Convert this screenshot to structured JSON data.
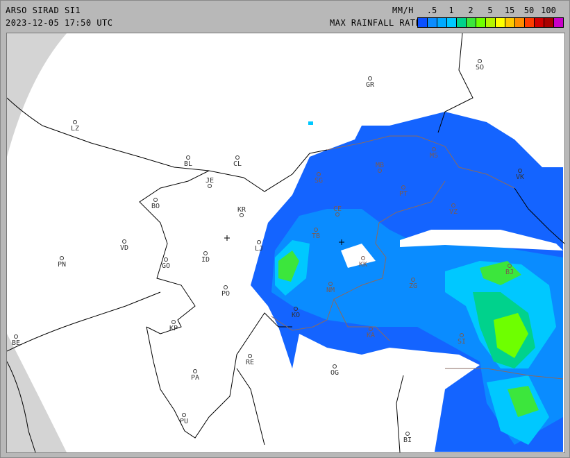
{
  "header": {
    "title": "ARSO SIRAD SI1",
    "timestamp": "2023-12-05 17:50 UTC",
    "unit": "MM/H",
    "legend_title": "MAX RAINFALL RATE"
  },
  "legend": {
    "ticks": [
      ".5",
      "1",
      "2",
      "5",
      "15",
      "50",
      "100"
    ],
    "colors": [
      "#0a50ff",
      "#0a8cff",
      "#00aaff",
      "#00c8ff",
      "#00d28c",
      "#3ce63c",
      "#6eff00",
      "#b4f500",
      "#ffff00",
      "#ffc800",
      "#ff8c00",
      "#ff3c00",
      "#d20000",
      "#aa0000",
      "#c800c8"
    ]
  },
  "cities": [
    {
      "code": "SO"
    },
    {
      "code": "GR"
    },
    {
      "code": "LZ"
    },
    {
      "code": "BL"
    },
    {
      "code": "CL"
    },
    {
      "code": "JE"
    },
    {
      "code": "BO"
    },
    {
      "code": "KR"
    },
    {
      "code": "VD"
    },
    {
      "code": "LJ"
    },
    {
      "code": "PN"
    },
    {
      "code": "GO"
    },
    {
      "code": "ID"
    },
    {
      "code": "PO"
    },
    {
      "code": "KP"
    },
    {
      "code": "BE"
    },
    {
      "code": "RE"
    },
    {
      "code": "OG"
    },
    {
      "code": "PA"
    },
    {
      "code": "PU"
    },
    {
      "code": "BI"
    },
    {
      "code": "SG"
    },
    {
      "code": "MB"
    },
    {
      "code": "CE"
    },
    {
      "code": "TB"
    },
    {
      "code": "PT"
    },
    {
      "code": "MS"
    },
    {
      "code": "VZ"
    },
    {
      "code": "VK"
    },
    {
      "code": "KK"
    },
    {
      "code": "NM"
    },
    {
      "code": "BJ"
    },
    {
      "code": "ZG"
    },
    {
      "code": "KO"
    },
    {
      "code": "KA"
    },
    {
      "code": "SI"
    }
  ]
}
